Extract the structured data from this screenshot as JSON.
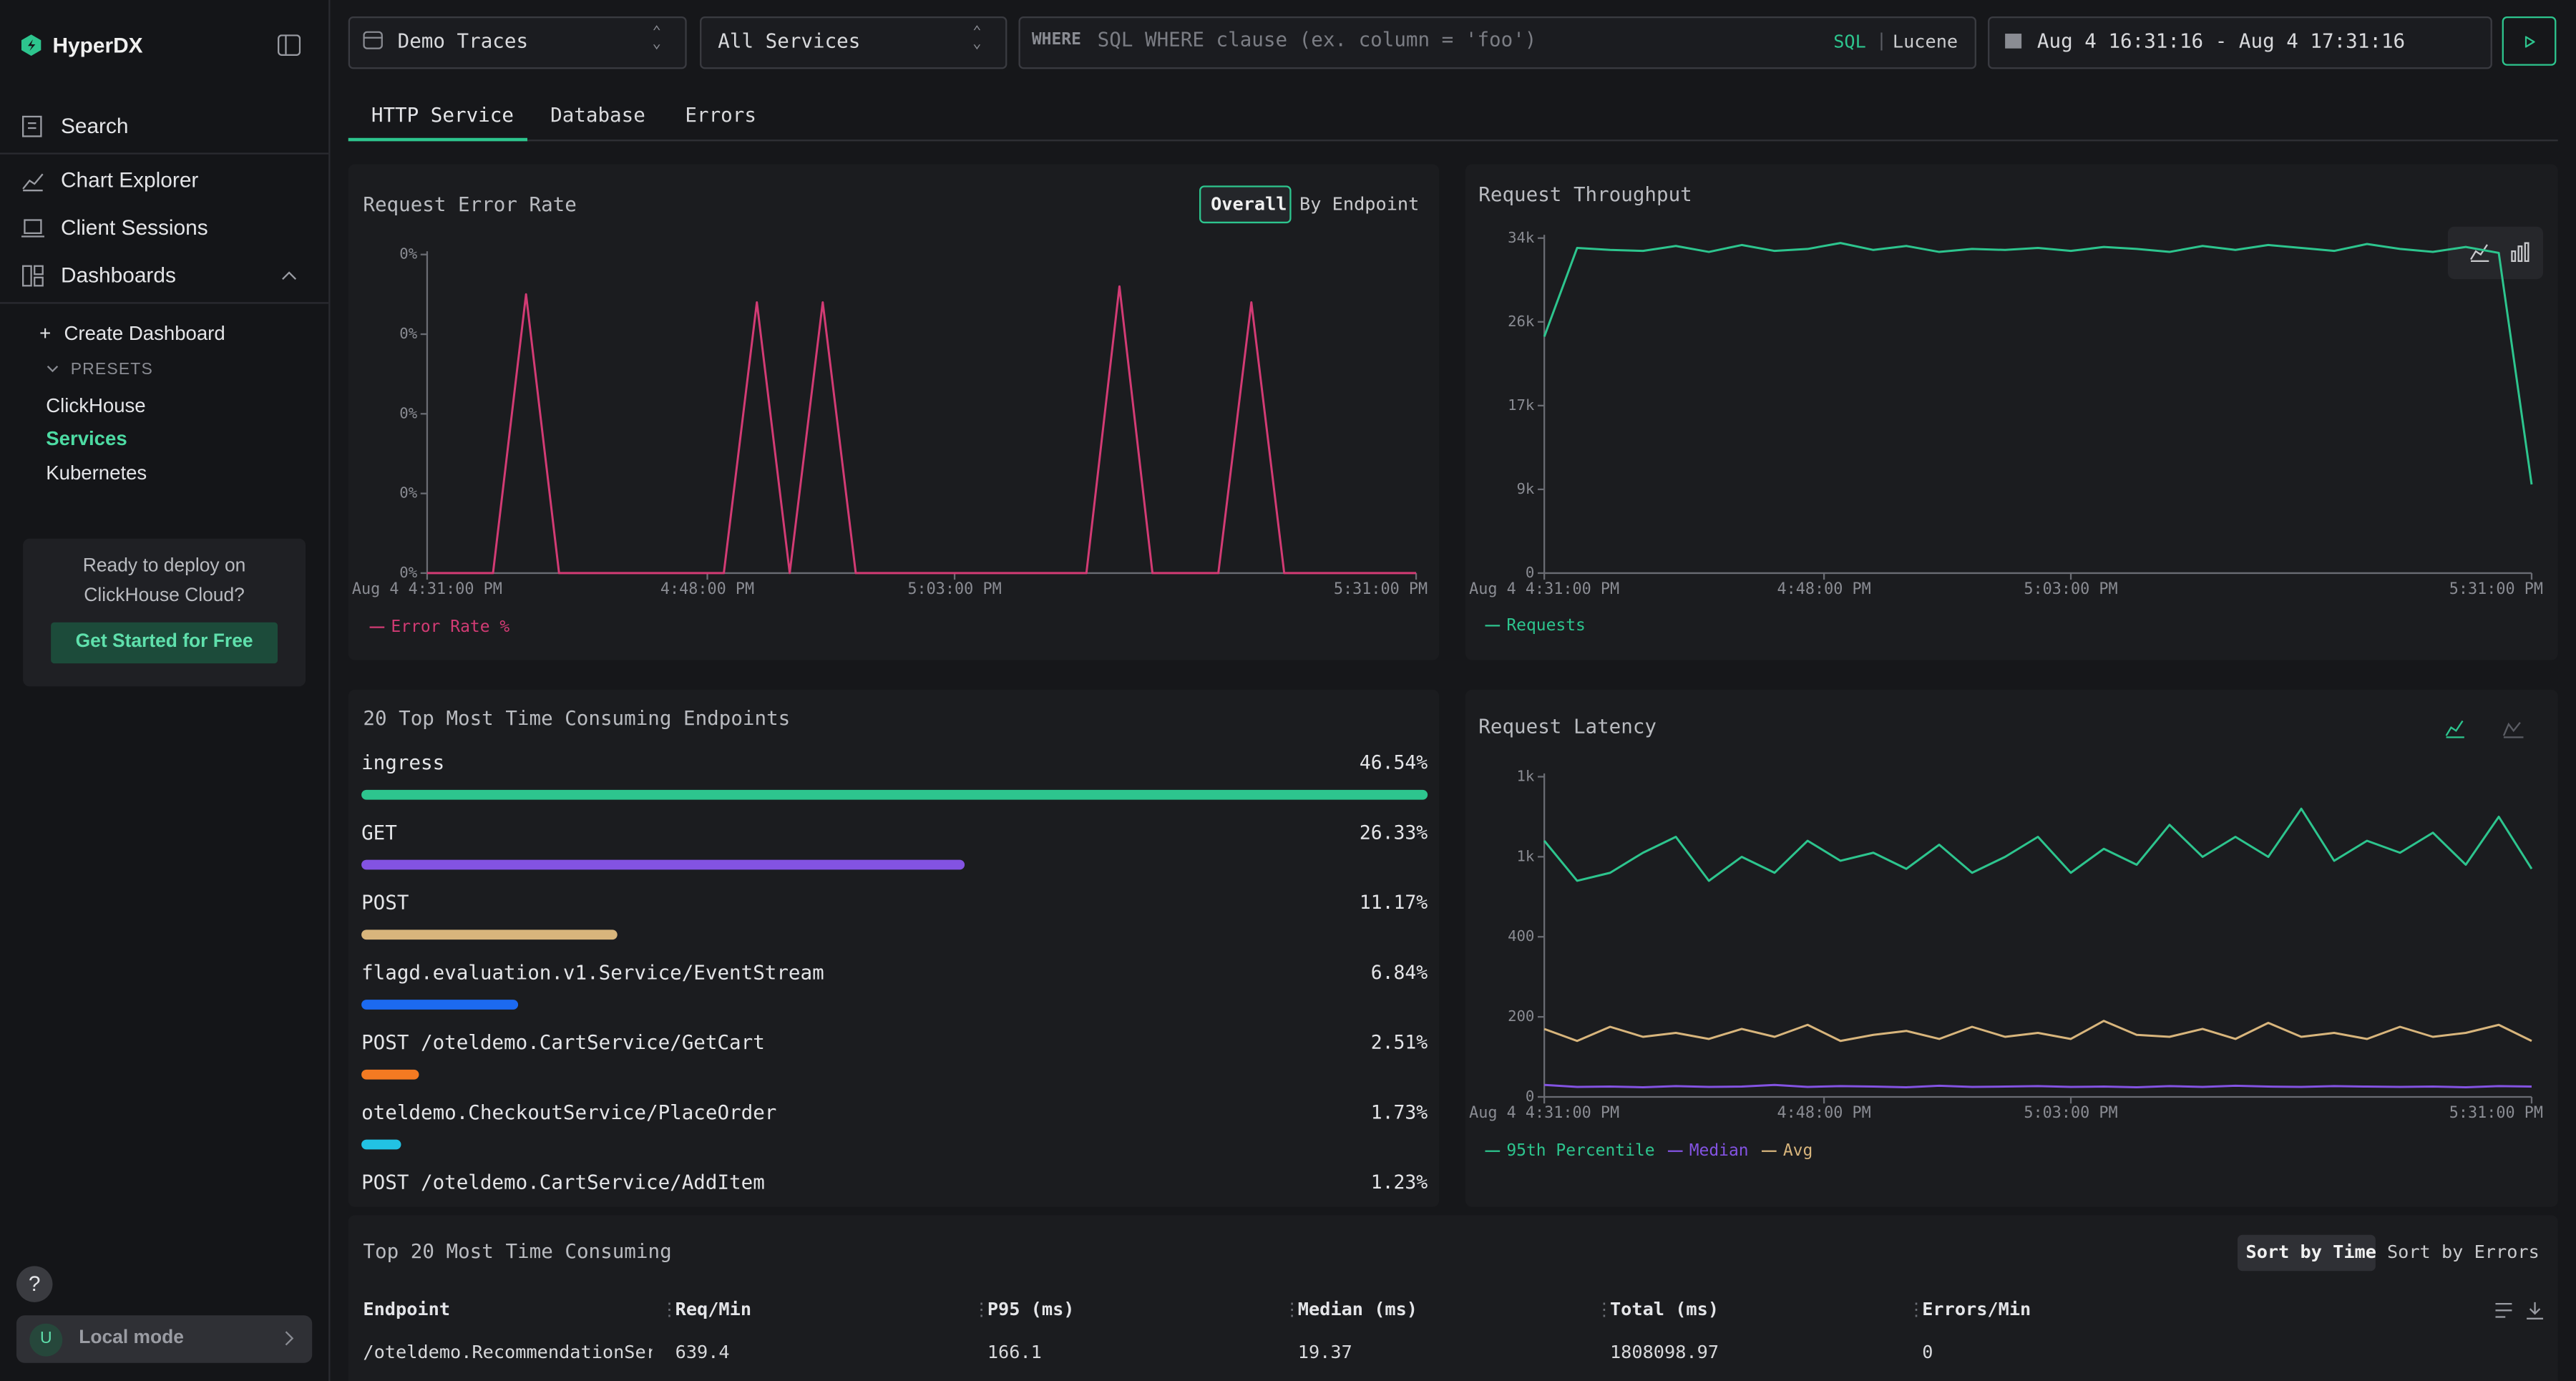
{
  "sidebar": {
    "brand": "HyperDX",
    "nav": [
      "Search",
      "Chart Explorer",
      "Client Sessions",
      "Dashboards"
    ],
    "create_dashboard": "Create Dashboard",
    "presets_label": "PRESETS",
    "presets": [
      "ClickHouse",
      "Services",
      "Kubernetes"
    ],
    "promo": {
      "text": "Ready to deploy on ClickHouse Cloud?",
      "button": "Get Started for Free"
    },
    "help": "?",
    "user": {
      "initial": "U",
      "mode": "Local mode"
    }
  },
  "toolbar": {
    "source": "Demo Traces",
    "service": "All Services",
    "where_label": "WHERE",
    "where_placeholder": "SQL WHERE clause (ex. column = 'foo')",
    "query_languages": [
      "SQL",
      "Lucene"
    ],
    "time_range": "Aug 4 16:31:16 - Aug 4 17:31:16"
  },
  "tabs": [
    "HTTP Service",
    "Database",
    "Errors"
  ],
  "chart_data": [
    {
      "type": "line",
      "title": "Request Error Rate",
      "toggles": [
        "Overall",
        "By Endpoint"
      ],
      "x": [
        0,
        2,
        4,
        6,
        8,
        10,
        12,
        14,
        16,
        18,
        20,
        22,
        24,
        26,
        28,
        30,
        32,
        34,
        36,
        38,
        40,
        42,
        44,
        46,
        48,
        50,
        52,
        54,
        56,
        58,
        60
      ],
      "xlim": [
        0,
        60
      ],
      "xticks": [
        {
          "value": 0,
          "label": "Aug 4 4:31:00 PM"
        },
        {
          "value": 17,
          "label": "4:48:00 PM"
        },
        {
          "value": 32,
          "label": "5:03:00 PM"
        },
        {
          "value": 60,
          "label": "5:31:00 PM"
        }
      ],
      "ylim": [
        0,
        0.04
      ],
      "yticks": [
        {
          "value": 0,
          "label": "0%"
        },
        {
          "value": 0.01,
          "label": "0%"
        },
        {
          "value": 0.02,
          "label": "0%"
        },
        {
          "value": 0.03,
          "label": "0%"
        },
        {
          "value": 0.04,
          "label": "0%"
        }
      ],
      "series": [
        {
          "name": "Error Rate %",
          "color": "#d23b74",
          "values": [
            0,
            0,
            0,
            0.035,
            0,
            0,
            0,
            0,
            0,
            0,
            0.034,
            0,
            0.034,
            0,
            0,
            0,
            0,
            0,
            0,
            0,
            0,
            0.036,
            0,
            0,
            0,
            0.034,
            0,
            0,
            0,
            0,
            0
          ]
        }
      ]
    },
    {
      "type": "line",
      "title": "Request Throughput",
      "x": [
        0,
        2,
        4,
        6,
        8,
        10,
        12,
        14,
        16,
        18,
        20,
        22,
        24,
        26,
        28,
        30,
        32,
        34,
        36,
        38,
        40,
        42,
        44,
        46,
        48,
        50,
        52,
        54,
        56,
        58,
        60
      ],
      "xlim": [
        0,
        60
      ],
      "xticks": [
        {
          "value": 0,
          "label": "Aug 4 4:31:00 PM"
        },
        {
          "value": 17,
          "label": "4:48:00 PM"
        },
        {
          "value": 32,
          "label": "5:03:00 PM"
        },
        {
          "value": 60,
          "label": "5:31:00 PM"
        }
      ],
      "ylim": [
        0,
        34000
      ],
      "yticks": [
        0,
        {
          "value": 8500,
          "label": "9k"
        },
        {
          "value": 17000,
          "label": "17k"
        },
        {
          "value": 25500,
          "label": "26k"
        },
        {
          "value": 34000,
          "label": "34k"
        }
      ],
      "series": [
        {
          "name": "Requests",
          "color": "#2dc58e",
          "values": [
            24000,
            33000,
            32800,
            32700,
            33200,
            32600,
            33300,
            32700,
            32900,
            33500,
            32800,
            33200,
            32600,
            32900,
            32800,
            33000,
            32700,
            33100,
            32900,
            32600,
            33200,
            32800,
            33300,
            33000,
            32700,
            33400,
            32900,
            32600,
            33100,
            32500,
            9000
          ]
        }
      ]
    },
    {
      "type": "bar",
      "title": "20 Top Most Time Consuming Endpoints",
      "categories": [
        "ingress",
        "GET",
        "POST",
        "flagd.evaluation.v1.Service/EventStream",
        "POST /oteldemo.CartService/GetCart",
        "oteldemo.CheckoutService/PlaceOrder",
        "POST /oteldemo.CartService/AddItem"
      ],
      "values": [
        46.54,
        26.33,
        11.17,
        6.84,
        2.51,
        1.73,
        1.23
      ],
      "value_labels": [
        "46.54%",
        "26.33%",
        "11.17%",
        "6.84%",
        "2.51%",
        "1.73%",
        "1.23%"
      ],
      "colors": [
        "#2dc58e",
        "#8353e2",
        "#d8b57c",
        "#1c6af0",
        "#f47a22",
        "#22c2e4",
        "#2dc58e"
      ]
    },
    {
      "type": "line",
      "title": "Request Latency",
      "x": [
        0,
        2,
        4,
        6,
        8,
        10,
        12,
        14,
        16,
        18,
        20,
        22,
        24,
        26,
        28,
        30,
        32,
        34,
        36,
        38,
        40,
        42,
        44,
        46,
        48,
        50,
        52,
        54,
        56,
        58,
        60
      ],
      "xlim": [
        0,
        60
      ],
      "xticks": [
        {
          "value": 0,
          "label": "Aug 4 4:31:00 PM"
        },
        {
          "value": 17,
          "label": "4:48:00 PM"
        },
        {
          "value": 32,
          "label": "5:03:00 PM"
        },
        {
          "value": 60,
          "label": "5:31:00 PM"
        }
      ],
      "ylim": [
        0,
        800
      ],
      "yticks": [
        0,
        200,
        400,
        {
          "value": 600,
          "label": "1k"
        },
        {
          "value": 800,
          "label": "1k"
        }
      ],
      "series": [
        {
          "name": "95th Percentile",
          "color": "#2dc58e",
          "values": [
            640,
            540,
            560,
            610,
            650,
            540,
            600,
            560,
            640,
            590,
            610,
            570,
            630,
            560,
            600,
            650,
            560,
            620,
            580,
            680,
            600,
            650,
            600,
            720,
            590,
            640,
            610,
            660,
            580,
            700,
            570
          ]
        },
        {
          "name": "Median",
          "color": "#8353e2",
          "values": [
            30,
            25,
            26,
            24,
            27,
            25,
            26,
            30,
            25,
            27,
            26,
            24,
            28,
            25,
            26,
            27,
            25,
            26,
            24,
            27,
            25,
            28,
            26,
            25,
            27,
            26,
            25,
            26,
            24,
            27,
            26
          ]
        },
        {
          "name": "Avg",
          "color": "#d8b57c",
          "values": [
            170,
            140,
            175,
            150,
            160,
            145,
            170,
            150,
            180,
            140,
            155,
            165,
            145,
            175,
            150,
            160,
            145,
            190,
            155,
            150,
            170,
            145,
            185,
            150,
            160,
            145,
            175,
            150,
            160,
            180,
            140
          ]
        }
      ]
    }
  ],
  "table": {
    "title": "Top 20 Most Time Consuming",
    "sort_options": [
      "Sort by Time",
      "Sort by Errors"
    ],
    "columns": [
      "Endpoint",
      "Req/Min",
      "P95 (ms)",
      "Median (ms)",
      "Total (ms)",
      "Errors/Min"
    ],
    "rows": [
      [
        "/oteldemo.RecommendationServ",
        639.4,
        166.1,
        19.37,
        1808098.97,
        0
      ]
    ]
  }
}
